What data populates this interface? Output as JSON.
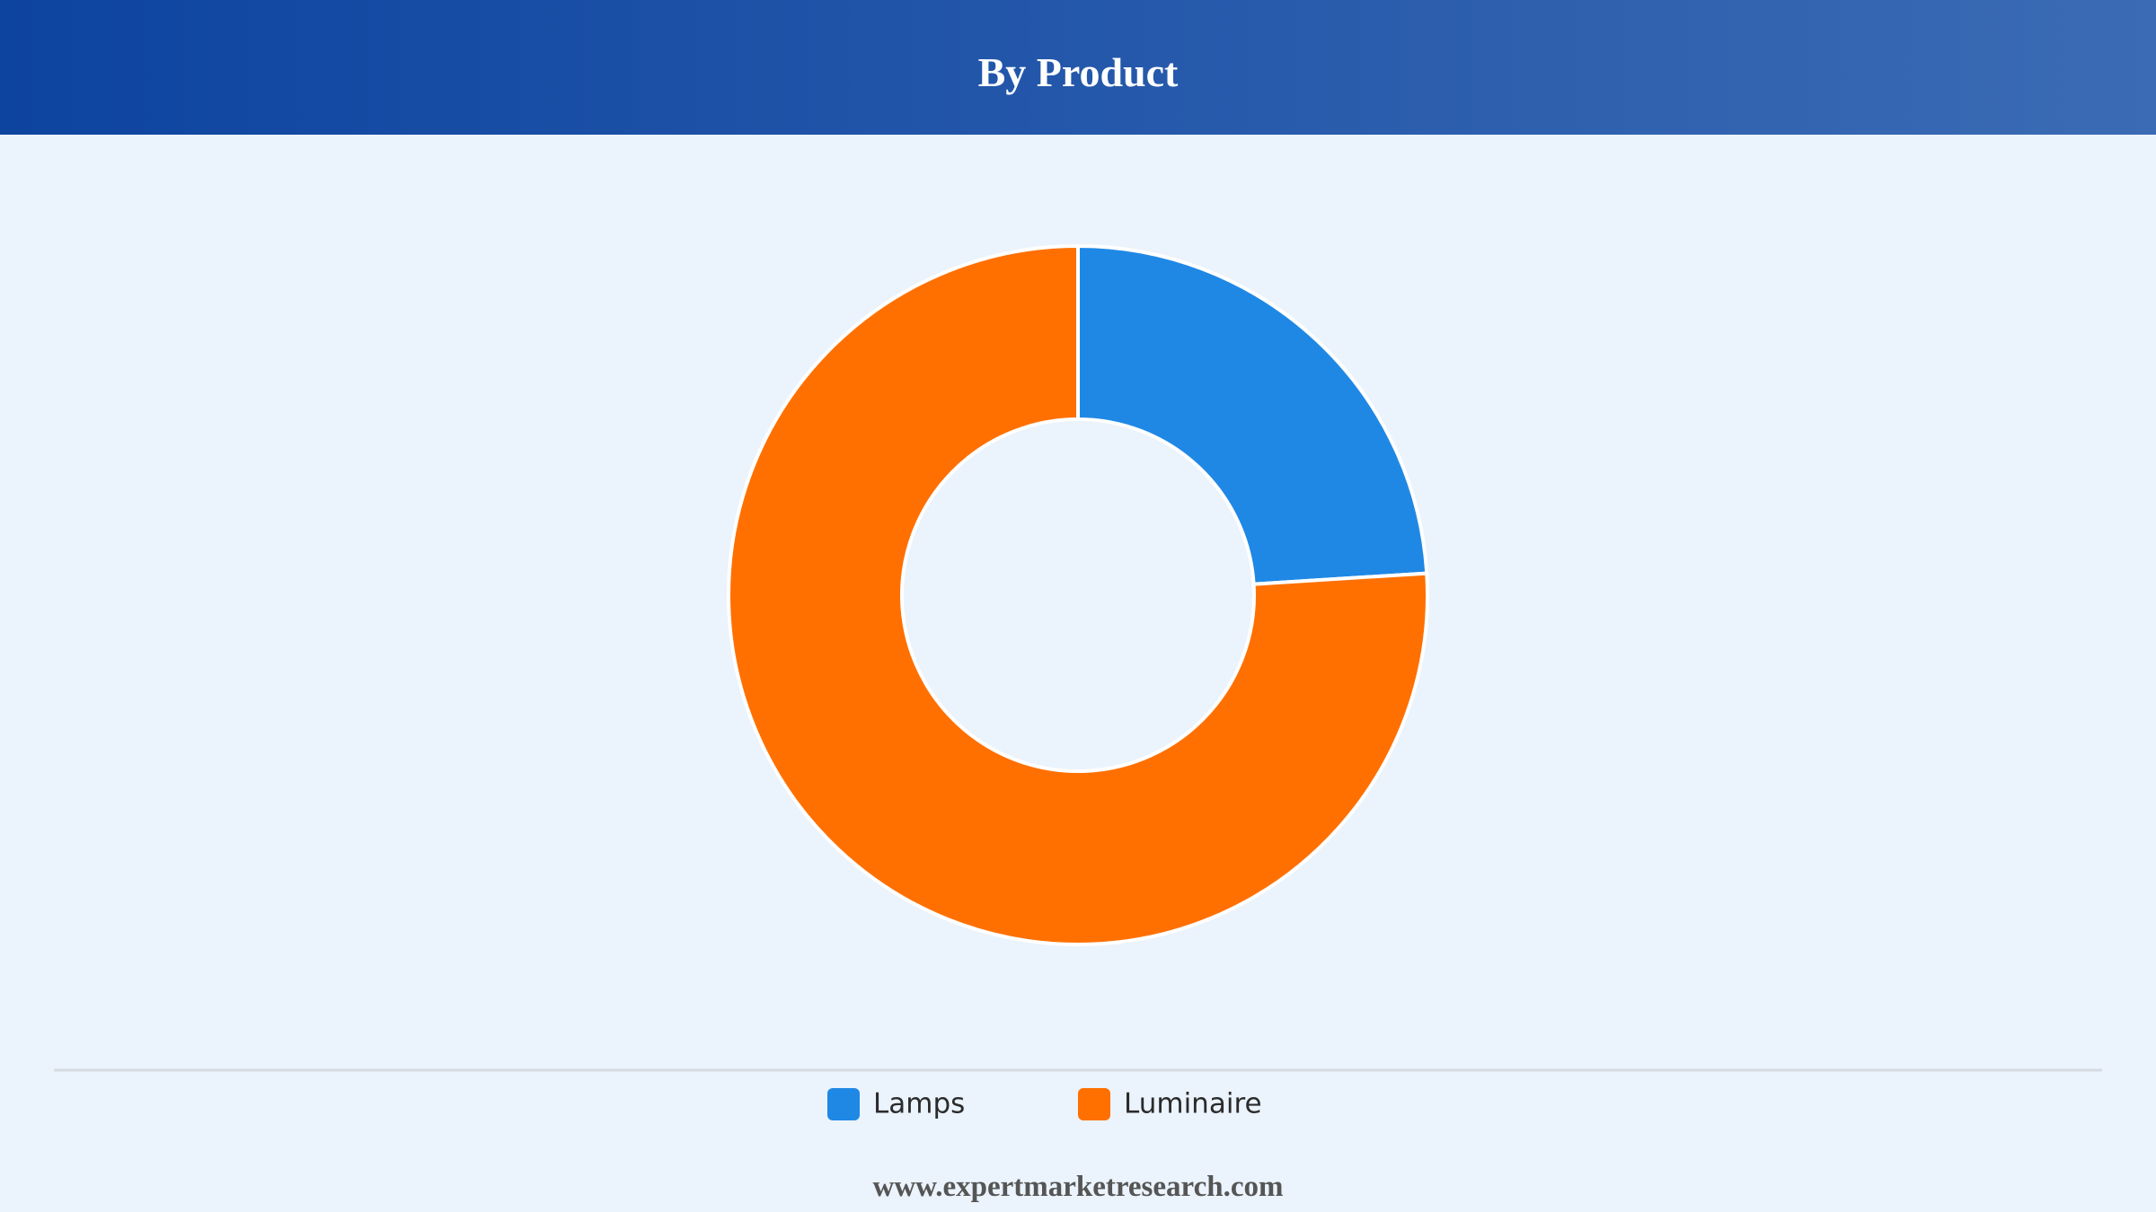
{
  "chart_data": {
    "type": "donut",
    "title": "By Product",
    "categories": [
      "Lamps",
      "Luminaire"
    ],
    "values": [
      24,
      76
    ],
    "colors": [
      "#1f88e5",
      "#ff7000"
    ],
    "source": "www.expertmarketresearch.com"
  }
}
